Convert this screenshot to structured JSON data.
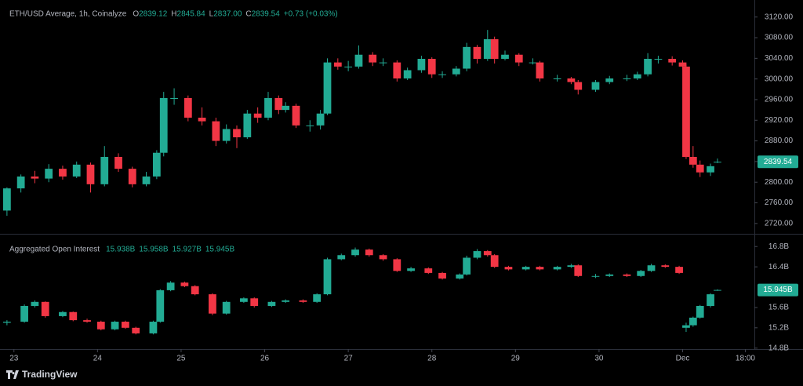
{
  "chart_data": [
    {
      "type": "candlestick",
      "title": "ETH/USD Average, 1h, Coinalyze",
      "legend_values": [
        {
          "key": "O",
          "value": "2839.12"
        },
        {
          "key": "H",
          "value": "2845.84"
        },
        {
          "key": "L",
          "value": "2837.00"
        },
        {
          "key": "C",
          "value": "2839.54"
        }
      ],
      "change": "+0.73 (+0.03%)",
      "up_color": "#22ab94",
      "down_color": "#f23645",
      "x": [
        -2,
        2,
        6,
        10,
        14,
        18,
        22,
        26,
        30,
        34,
        38,
        41,
        43,
        46,
        50,
        54,
        58,
        61,
        64,
        67,
        70,
        73,
        76,
        78,
        81,
        85,
        88,
        90,
        93,
        96,
        99,
        103,
        106,
        110,
        113,
        117,
        120,
        123,
        127,
        130,
        133,
        136,
        138,
        141,
        145,
        149,
        151,
        156,
        160,
        162,
        167,
        171,
        176,
        179,
        182,
        185,
        189,
        192,
        193,
        195,
        197,
        200,
        202
      ],
      "open": [
        2745,
        2788,
        2811,
        2807,
        2826,
        2811,
        2834,
        2796,
        2849,
        2826,
        2796,
        2811,
        2857,
        2963,
        2963,
        2925,
        2918,
        2880,
        2903,
        2887,
        2933,
        2925,
        2963,
        2940,
        2948,
        2910,
        2910,
        2933,
        3032,
        3024,
        3024,
        3047,
        3032,
        3032,
        3001,
        3017,
        3039,
        3009,
        3009,
        3020,
        3062,
        3039,
        3077,
        3039,
        3047,
        3032,
        3032,
        3001,
        3001,
        2994,
        2979,
        2994,
        3001,
        3001,
        3009,
        3039,
        3039,
        3032,
        3024,
        2849,
        2834,
        2819,
        2839.12
      ],
      "high": [
        2790,
        2815,
        2822,
        2835,
        2832,
        2840,
        2838,
        2870,
        2856,
        2830,
        2820,
        2862,
        2975,
        2982,
        2968,
        2945,
        2925,
        2912,
        2910,
        2940,
        2945,
        2975,
        2968,
        2955,
        2952,
        2920,
        2940,
        3040,
        3040,
        3035,
        3065,
        3052,
        3040,
        3036,
        3022,
        3045,
        3042,
        3015,
        3025,
        3070,
        3066,
        3095,
        3082,
        3055,
        3050,
        3040,
        3035,
        3008,
        3004,
        2998,
        2998,
        3006,
        3008,
        3014,
        3050,
        3045,
        3044,
        3036,
        3028,
        2870,
        2842,
        2836,
        2845.84
      ],
      "low": [
        2735,
        2780,
        2798,
        2800,
        2805,
        2808,
        2780,
        2792,
        2820,
        2790,
        2792,
        2806,
        2850,
        2950,
        2918,
        2910,
        2870,
        2875,
        2866,
        2884,
        2915,
        2920,
        2932,
        2935,
        2905,
        2898,
        2902,
        2930,
        3018,
        3015,
        3020,
        3025,
        3025,
        2995,
        2998,
        3012,
        3002,
        3002,
        3005,
        3015,
        3030,
        3035,
        3030,
        3036,
        3025,
        3028,
        2995,
        2995,
        2990,
        2970,
        2975,
        2990,
        2996,
        2998,
        3005,
        3030,
        3026,
        3018,
        2845,
        2828,
        2810,
        2812,
        2837
      ],
      "close": [
        2788,
        2811,
        2807,
        2826,
        2811,
        2834,
        2796,
        2849,
        2826,
        2796,
        2811,
        2857,
        2963,
        2963,
        2925,
        2918,
        2880,
        2903,
        2887,
        2933,
        2925,
        2963,
        2940,
        2948,
        2910,
        2910,
        2933,
        3032,
        3024,
        3024,
        3047,
        3032,
        3032,
        3001,
        3017,
        3039,
        3009,
        3009,
        3020,
        3062,
        3039,
        3077,
        3039,
        3047,
        3032,
        3032,
        3001,
        3001,
        2994,
        2979,
        2994,
        3001,
        3001,
        3009,
        3039,
        3039,
        3032,
        3024,
        2849,
        2834,
        2819,
        2831,
        2839.54
      ],
      "xlim": [
        -4,
        212.6
      ],
      "ylim": [
        2700,
        3153
      ],
      "yticks": [
        {
          "value": 2720,
          "label": "2720.00"
        },
        {
          "value": 2760,
          "label": "2760.00"
        },
        {
          "value": 2800,
          "label": "2800.00"
        },
        {
          "value": 2840,
          "label": "2840.00"
        },
        {
          "value": 2880,
          "label": "2880.00"
        },
        {
          "value": 2920,
          "label": "2920.00"
        },
        {
          "value": 2960,
          "label": "2960.00"
        },
        {
          "value": 3000,
          "label": "3000.00"
        },
        {
          "value": 3040,
          "label": "3040.00"
        },
        {
          "value": 3080,
          "label": "3080.00"
        },
        {
          "value": 3120,
          "label": "3120.00"
        }
      ]
    },
    {
      "type": "candlestick",
      "title": "Aggregated Open Interest",
      "legend_values": [
        {
          "value": "15.938B"
        },
        {
          "value": "15.958B"
        },
        {
          "value": "15.927B"
        },
        {
          "value": "15.945B"
        }
      ],
      "up_color": "#22ab94",
      "down_color": "#f23645",
      "x": [
        -2,
        3,
        6,
        9,
        14,
        17,
        21,
        25,
        29,
        32,
        35,
        40,
        42,
        45,
        49,
        52,
        57,
        61,
        66,
        69,
        74,
        78,
        83,
        87,
        90,
        94,
        98,
        102,
        106,
        110,
        114,
        119,
        123,
        128,
        130,
        133,
        136,
        138,
        142,
        147,
        151,
        156,
        160,
        162,
        167,
        171,
        176,
        180,
        183,
        187,
        191,
        193,
        195,
        197,
        200,
        202
      ],
      "open": [
        15.3,
        15.32,
        15.63,
        15.71,
        15.43,
        15.51,
        15.35,
        15.32,
        15.17,
        15.32,
        15.2,
        15.09,
        15.32,
        15.94,
        16.09,
        16.02,
        15.86,
        15.48,
        15.71,
        15.78,
        15.63,
        15.71,
        15.74,
        15.71,
        15.86,
        16.55,
        16.63,
        16.74,
        16.63,
        16.55,
        16.32,
        16.37,
        16.28,
        16.17,
        16.25,
        16.58,
        16.71,
        16.63,
        16.4,
        16.35,
        16.4,
        16.35,
        16.4,
        16.43,
        16.22,
        16.22,
        16.25,
        16.22,
        16.32,
        16.43,
        16.4,
        15.2,
        15.25,
        15.4,
        15.63,
        15.938
      ],
      "high": [
        15.35,
        15.66,
        15.74,
        15.72,
        15.53,
        15.52,
        15.38,
        15.34,
        15.34,
        15.34,
        15.22,
        15.34,
        15.96,
        16.12,
        16.11,
        16.04,
        15.88,
        15.73,
        15.8,
        15.8,
        15.73,
        15.76,
        15.76,
        15.88,
        16.58,
        16.66,
        16.78,
        16.76,
        16.65,
        16.57,
        16.4,
        16.39,
        16.3,
        16.27,
        16.62,
        16.75,
        16.73,
        16.65,
        16.42,
        16.42,
        16.42,
        16.42,
        16.46,
        16.45,
        16.26,
        16.27,
        16.27,
        16.34,
        16.46,
        16.45,
        16.42,
        15.3,
        15.42,
        15.65,
        15.88,
        15.958
      ],
      "low": [
        15.25,
        15.3,
        15.6,
        15.4,
        15.41,
        15.33,
        15.3,
        15.15,
        15.15,
        15.18,
        15.07,
        15.07,
        15.3,
        15.92,
        16.0,
        15.84,
        15.45,
        15.46,
        15.69,
        15.6,
        15.61,
        15.69,
        15.69,
        15.69,
        15.84,
        16.53,
        16.6,
        16.6,
        16.52,
        16.3,
        16.3,
        16.26,
        16.15,
        16.15,
        16.23,
        16.55,
        16.6,
        16.38,
        16.33,
        16.33,
        16.33,
        16.33,
        16.38,
        16.2,
        16.18,
        16.2,
        16.2,
        16.2,
        16.3,
        16.38,
        16.26,
        15.12,
        15.22,
        15.38,
        15.6,
        15.927
      ],
      "close": [
        15.32,
        15.63,
        15.71,
        15.43,
        15.51,
        15.35,
        15.32,
        15.17,
        15.32,
        15.2,
        15.09,
        15.32,
        15.94,
        16.09,
        16.02,
        15.86,
        15.48,
        15.71,
        15.78,
        15.63,
        15.71,
        15.74,
        15.71,
        15.86,
        16.55,
        16.63,
        16.74,
        16.63,
        16.55,
        16.32,
        16.37,
        16.28,
        16.17,
        16.25,
        16.58,
        16.71,
        16.63,
        16.4,
        16.35,
        16.4,
        16.35,
        16.4,
        16.43,
        16.22,
        16.22,
        16.25,
        16.22,
        16.32,
        16.43,
        16.4,
        16.28,
        15.25,
        15.4,
        15.63,
        15.86,
        15.945
      ],
      "xlim": [
        -4,
        212.6
      ],
      "ylim": [
        14.78,
        17.02
      ],
      "yticks": [
        {
          "value": 14.8,
          "label": "14.8B"
        },
        {
          "value": 15.2,
          "label": "15.2B"
        },
        {
          "value": 15.6,
          "label": "15.6B"
        },
        {
          "value": 16.4,
          "label": "16.4B"
        },
        {
          "value": 16.8,
          "label": "16.8B"
        }
      ],
      "xticks": [
        {
          "value": 0,
          "label": "23"
        },
        {
          "value": 24,
          "label": "24"
        },
        {
          "value": 48,
          "label": "25"
        },
        {
          "value": 72,
          "label": "26"
        },
        {
          "value": 96,
          "label": "27"
        },
        {
          "value": 120,
          "label": "28"
        },
        {
          "value": 144,
          "label": "29"
        },
        {
          "value": 168,
          "label": "30"
        },
        {
          "value": 192,
          "label": "Dec"
        },
        {
          "value": 210,
          "label": "18:00"
        }
      ]
    }
  ],
  "footer": {
    "brand": "TradingView"
  }
}
